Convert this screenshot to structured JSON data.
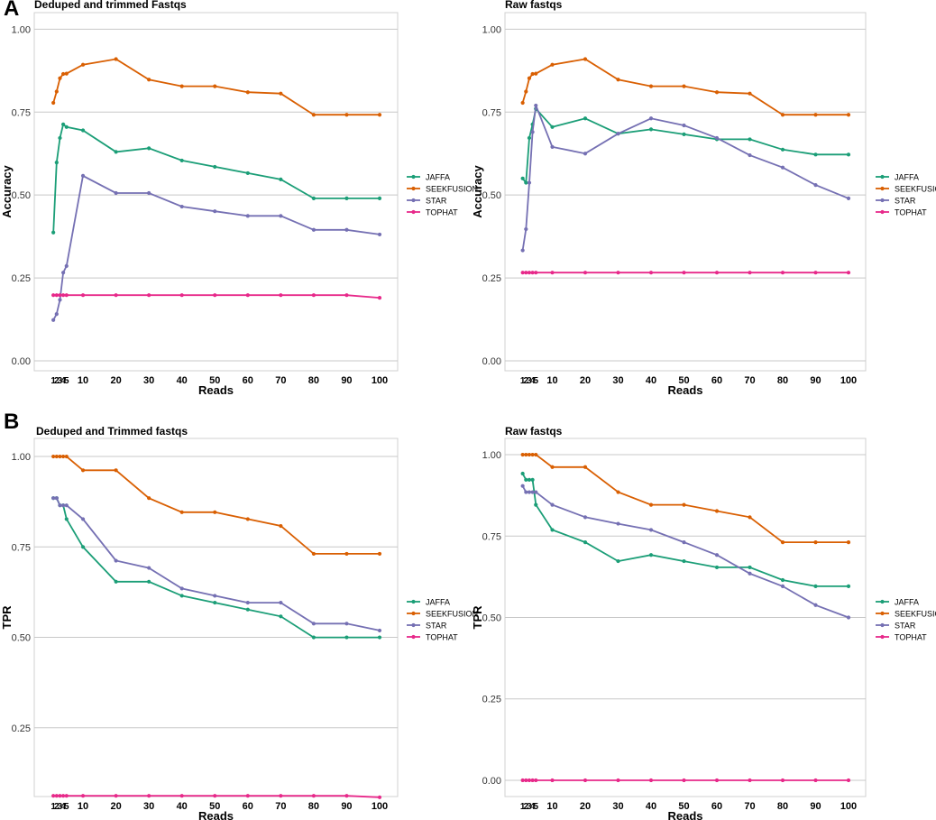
{
  "panel_labels": [
    "A",
    "B"
  ],
  "colors": {
    "JAFFA": "#1b9e77",
    "SEEKFUSION": "#d95f02",
    "STAR": "#7570b3",
    "TOPHAT": "#e7298a",
    "grid": "#c8c8c8",
    "frame": "#d0d0d0"
  },
  "chart_data": [
    {
      "type": "line",
      "panel": "A",
      "title": "Deduped and trimmed Fastqs",
      "xlabel": "Reads",
      "ylabel": "Accuracy",
      "x": [
        1,
        2,
        3,
        4,
        5,
        10,
        20,
        30,
        40,
        50,
        60,
        70,
        80,
        90,
        100
      ],
      "x_tick_labels": [
        "1",
        "2",
        "3",
        "4",
        "5",
        "10",
        "20",
        "30",
        "40",
        "50",
        "60",
        "70",
        "80",
        "90",
        "100"
      ],
      "yticks": [
        0.0,
        0.25,
        0.5,
        0.75,
        1.0
      ],
      "ytick_labels": [
        "0.00",
        "0.25",
        "0.50",
        "0.75",
        "1.00"
      ],
      "ylim": [
        -0.03,
        1.05
      ],
      "legend": [
        "JAFFA",
        "SEEKFUSION",
        "STAR",
        "TOPHAT"
      ],
      "series": [
        {
          "name": "JAFFA",
          "values": [
            0.387,
            0.598,
            0.672,
            0.713,
            0.705,
            0.695,
            0.63,
            0.641,
            0.604,
            0.585,
            0.566,
            0.547,
            0.49,
            0.49,
            0.49
          ]
        },
        {
          "name": "SEEKFUSION",
          "values": [
            0.778,
            0.812,
            0.852,
            0.865,
            0.866,
            0.893,
            0.91,
            0.848,
            0.828,
            0.828,
            0.81,
            0.806,
            0.742,
            0.742,
            0.742
          ]
        },
        {
          "name": "STAR",
          "values": [
            0.123,
            0.141,
            0.184,
            0.266,
            0.286,
            0.558,
            0.506,
            0.506,
            0.465,
            0.451,
            0.437,
            0.437,
            0.395,
            0.395,
            0.381
          ]
        },
        {
          "name": "TOPHAT",
          "values": [
            0.198,
            0.198,
            0.198,
            0.198,
            0.198,
            0.198,
            0.198,
            0.198,
            0.198,
            0.198,
            0.198,
            0.198,
            0.198,
            0.198,
            0.19
          ]
        }
      ]
    },
    {
      "type": "line",
      "panel": "A",
      "title": "Raw fastqs",
      "xlabel": "Reads",
      "ylabel": "Accuracy",
      "x": [
        1,
        2,
        3,
        4,
        5,
        10,
        20,
        30,
        40,
        50,
        60,
        70,
        80,
        90,
        100
      ],
      "x_tick_labels": [
        "1",
        "2",
        "3",
        "4",
        "5",
        "10",
        "20",
        "30",
        "40",
        "50",
        "60",
        "70",
        "80",
        "90",
        "100"
      ],
      "yticks": [
        0.0,
        0.25,
        0.5,
        0.75,
        1.0
      ],
      "ytick_labels": [
        "0.00",
        "0.25",
        "0.50",
        "0.75",
        "1.00"
      ],
      "ylim": [
        -0.03,
        1.05
      ],
      "legend": [
        "JAFFA",
        "SEEKFUSION",
        "STAR",
        "TOPHAT"
      ],
      "series": [
        {
          "name": "JAFFA",
          "values": [
            0.55,
            0.537,
            0.672,
            0.713,
            0.76,
            0.705,
            0.731,
            0.685,
            0.698,
            0.683,
            0.668,
            0.668,
            0.637,
            0.622,
            0.622
          ]
        },
        {
          "name": "SEEKFUSION",
          "values": [
            0.778,
            0.812,
            0.852,
            0.865,
            0.866,
            0.893,
            0.91,
            0.848,
            0.828,
            0.828,
            0.81,
            0.806,
            0.742,
            0.742,
            0.742
          ]
        },
        {
          "name": "STAR",
          "values": [
            0.333,
            0.397,
            0.537,
            0.69,
            0.77,
            0.645,
            0.625,
            0.685,
            0.731,
            0.71,
            0.672,
            0.62,
            0.583,
            0.53,
            0.49
          ]
        },
        {
          "name": "TOPHAT",
          "values": [
            0.266,
            0.266,
            0.266,
            0.266,
            0.266,
            0.266,
            0.266,
            0.266,
            0.266,
            0.266,
            0.266,
            0.266,
            0.266,
            0.266,
            0.266
          ]
        }
      ]
    },
    {
      "type": "line",
      "panel": "B",
      "title": "Deduped and Trimmed fastqs",
      "xlabel": "Reads",
      "ylabel": "TPR",
      "x": [
        1,
        2,
        3,
        4,
        5,
        10,
        20,
        30,
        40,
        50,
        60,
        70,
        80,
        90,
        100
      ],
      "x_tick_labels": [
        "1",
        "2",
        "3",
        "4",
        "5",
        "10",
        "20",
        "30",
        "40",
        "50",
        "60",
        "70",
        "80",
        "90",
        "100"
      ],
      "yticks": [
        0.25,
        0.5,
        0.75,
        1.0
      ],
      "ytick_labels": [
        "0.25",
        "0.50",
        "0.75",
        "1.00"
      ],
      "ylim": [
        0.06,
        1.05
      ],
      "legend": [
        "JAFFA",
        "SEEKFUSION",
        "STAR",
        "TOPHAT"
      ],
      "series": [
        {
          "name": "JAFFA",
          "values": [
            0.885,
            0.885,
            0.865,
            0.865,
            0.827,
            0.75,
            0.654,
            0.654,
            0.615,
            0.596,
            0.577,
            0.558,
            0.5,
            0.5,
            0.5
          ]
        },
        {
          "name": "SEEKFUSION",
          "values": [
            1.0,
            1.0,
            1.0,
            1.0,
            1.0,
            0.962,
            0.962,
            0.885,
            0.846,
            0.846,
            0.827,
            0.808,
            0.731,
            0.731,
            0.731
          ]
        },
        {
          "name": "STAR",
          "values": [
            0.885,
            0.885,
            0.865,
            0.865,
            0.865,
            0.827,
            0.712,
            0.692,
            0.635,
            0.615,
            0.596,
            0.596,
            0.538,
            0.538,
            0.519
          ]
        },
        {
          "name": "TOPHAT",
          "values": [
            0.062,
            0.062,
            0.062,
            0.062,
            0.062,
            0.062,
            0.062,
            0.062,
            0.062,
            0.062,
            0.062,
            0.062,
            0.062,
            0.062,
            0.058
          ]
        }
      ]
    },
    {
      "type": "line",
      "panel": "B",
      "title": "Raw fastqs",
      "xlabel": "Reads",
      "ylabel": "TPR",
      "x": [
        1,
        2,
        3,
        4,
        5,
        10,
        20,
        30,
        40,
        50,
        60,
        70,
        80,
        90,
        100
      ],
      "x_tick_labels": [
        "1",
        "2",
        "3",
        "4",
        "5",
        "10",
        "20",
        "30",
        "40",
        "50",
        "60",
        "70",
        "80",
        "90",
        "100"
      ],
      "yticks": [
        0.0,
        0.25,
        0.5,
        0.75,
        1.0
      ],
      "ytick_labels": [
        "0.00",
        "0.25",
        "0.50",
        "0.75",
        "1.00"
      ],
      "ylim": [
        -0.05,
        1.05
      ],
      "legend": [
        "JAFFA",
        "SEEKFUSION",
        "STAR",
        "TOPHAT"
      ],
      "series": [
        {
          "name": "JAFFA",
          "values": [
            0.942,
            0.923,
            0.923,
            0.923,
            0.846,
            0.769,
            0.731,
            0.673,
            0.692,
            0.673,
            0.654,
            0.654,
            0.615,
            0.596,
            0.596
          ]
        },
        {
          "name": "SEEKFUSION",
          "values": [
            1.0,
            1.0,
            1.0,
            1.0,
            1.0,
            0.962,
            0.962,
            0.885,
            0.846,
            0.846,
            0.827,
            0.808,
            0.731,
            0.731,
            0.731
          ]
        },
        {
          "name": "STAR",
          "values": [
            0.904,
            0.885,
            0.885,
            0.885,
            0.885,
            0.846,
            0.808,
            0.788,
            0.769,
            0.731,
            0.692,
            0.635,
            0.596,
            0.538,
            0.5
          ]
        },
        {
          "name": "TOPHAT",
          "values": [
            0.0,
            0.0,
            0.0,
            0.0,
            0.0,
            0.0,
            0.0,
            0.0,
            0.0,
            0.0,
            0.0,
            0.0,
            0.0,
            0.0,
            0.0
          ]
        }
      ]
    }
  ]
}
